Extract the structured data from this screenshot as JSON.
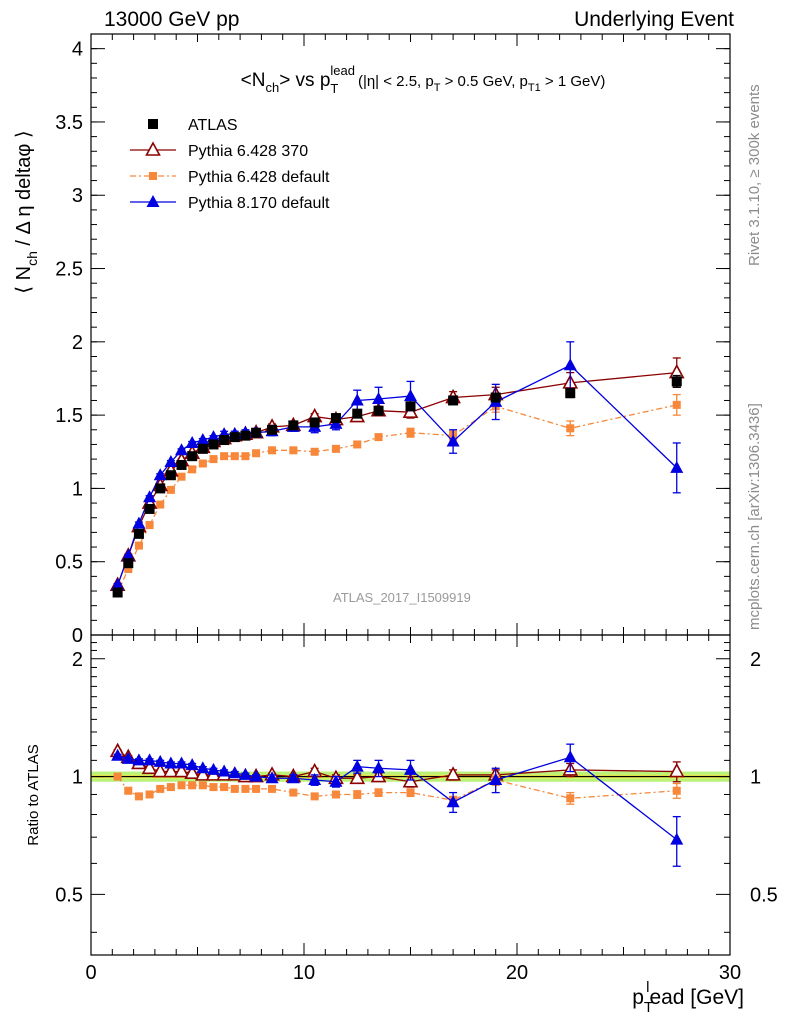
{
  "header": {
    "energy_label": "13000 GeV pp",
    "process_label": "Underlying Event"
  },
  "side_notes": {
    "rivet": "Rivet 3.1.10, ≥ 300k events",
    "source": "mcplots.cern.ch [arXiv:1306.3436]"
  },
  "analysis_tag": "ATLAS_2017_I1509919",
  "colors": {
    "atlas": "#000000",
    "pythia6_370": "#8b0000",
    "pythia6_default": "#f7873a",
    "pythia8_default": "#0000e0",
    "band_inner": "#ffff55",
    "band_outer": "#aaee55"
  },
  "chart_data": [
    {
      "type": "scatter",
      "panel": "main",
      "title": "<N_ch> vs p_T^lead (|η| < 2.5, p_T > 0.5 GeV, p_T1 > 1 GeV)",
      "title_parts": {
        "lhs": "<N",
        "lhs_sub": "ch",
        "mid": "> vs p",
        "mid_sub": "T",
        "mid_sup": "lead",
        "cuts_open": "(|η| < 2.5, p",
        "cuts_sub1": "T",
        "cuts_mid": " > 0.5 GeV, p",
        "cuts_sub2": "T1",
        "cuts_close": " > 1 GeV)"
      },
      "ylabel": "⟨ N_ch / Δη deltaφ ⟩",
      "ylabel_parts": {
        "open": "⟨ N",
        "sub": "ch",
        "rest": " / Δ η deltaφ ⟩"
      },
      "xlim": [
        0,
        30
      ],
      "ylim": [
        0,
        4.1
      ],
      "y_ticks": [
        0,
        0.5,
        1,
        1.5,
        2,
        2.5,
        3,
        3.5,
        4
      ],
      "y_tick_labels": [
        "0",
        "0.5",
        "1",
        "1.5",
        "2",
        "2.5",
        "3",
        "3.5",
        "4"
      ],
      "legend_position": "top-left",
      "series": [
        {
          "name": "ATLAS",
          "marker": "square",
          "x": [
            1.25,
            1.75,
            2.25,
            2.75,
            3.25,
            3.75,
            4.25,
            4.75,
            5.25,
            5.75,
            6.25,
            6.75,
            7.25,
            7.75,
            8.5,
            9.5,
            10.5,
            11.5,
            12.5,
            13.5,
            15,
            17,
            19,
            22.5,
            27.5
          ],
          "y": [
            0.29,
            0.49,
            0.69,
            0.86,
            1.0,
            1.09,
            1.16,
            1.22,
            1.27,
            1.3,
            1.33,
            1.35,
            1.36,
            1.38,
            1.4,
            1.43,
            1.45,
            1.48,
            1.51,
            1.53,
            1.56,
            1.6,
            1.62,
            1.65,
            1.73
          ],
          "yerr": [
            0.01,
            0.01,
            0.01,
            0.01,
            0.01,
            0.01,
            0.01,
            0.01,
            0.01,
            0.01,
            0.01,
            0.01,
            0.01,
            0.01,
            0.01,
            0.01,
            0.01,
            0.01,
            0.01,
            0.01,
            0.02,
            0.02,
            0.02,
            0.03,
            0.04
          ]
        },
        {
          "name": "Pythia 6.428 370",
          "marker": "open-triangle",
          "line": "solid",
          "x": [
            1.25,
            1.75,
            2.25,
            2.75,
            3.25,
            3.75,
            4.25,
            4.75,
            5.25,
            5.75,
            6.25,
            6.75,
            7.25,
            7.75,
            8.5,
            9.5,
            10.5,
            11.5,
            12.5,
            13.5,
            15,
            17,
            19,
            22.5,
            27.5
          ],
          "y": [
            0.34,
            0.54,
            0.74,
            0.9,
            1.02,
            1.12,
            1.19,
            1.24,
            1.28,
            1.32,
            1.34,
            1.36,
            1.37,
            1.38,
            1.42,
            1.43,
            1.49,
            1.47,
            1.49,
            1.53,
            1.52,
            1.62,
            1.64,
            1.72,
            1.79
          ],
          "yerr": [
            0.01,
            0.01,
            0.01,
            0.01,
            0.01,
            0.01,
            0.01,
            0.01,
            0.01,
            0.01,
            0.01,
            0.01,
            0.01,
            0.01,
            0.02,
            0.02,
            0.02,
            0.03,
            0.03,
            0.03,
            0.04,
            0.04,
            0.05,
            0.07,
            0.1
          ]
        },
        {
          "name": "Pythia 6.428 default",
          "marker": "small-square",
          "line": "dashdot",
          "x": [
            1.25,
            1.75,
            2.25,
            2.75,
            3.25,
            3.75,
            4.25,
            4.75,
            5.25,
            5.75,
            6.25,
            6.75,
            7.25,
            7.75,
            8.5,
            9.5,
            10.5,
            11.5,
            12.5,
            13.5,
            15,
            17,
            19,
            22.5,
            27.5
          ],
          "y": [
            0.29,
            0.45,
            0.61,
            0.75,
            0.89,
            0.99,
            1.08,
            1.13,
            1.17,
            1.2,
            1.22,
            1.22,
            1.22,
            1.24,
            1.26,
            1.26,
            1.25,
            1.27,
            1.3,
            1.35,
            1.38,
            1.36,
            1.56,
            1.41,
            1.57
          ],
          "yerr": [
            0.01,
            0.01,
            0.01,
            0.01,
            0.01,
            0.01,
            0.01,
            0.01,
            0.01,
            0.01,
            0.01,
            0.01,
            0.01,
            0.01,
            0.01,
            0.01,
            0.01,
            0.02,
            0.02,
            0.02,
            0.03,
            0.03,
            0.04,
            0.05,
            0.07
          ]
        },
        {
          "name": "Pythia 8.170 default",
          "marker": "filled-triangle",
          "line": "solid",
          "x": [
            1.25,
            1.75,
            2.25,
            2.75,
            3.25,
            3.75,
            4.25,
            4.75,
            5.25,
            5.75,
            6.25,
            6.75,
            7.25,
            7.75,
            8.5,
            9.5,
            10.5,
            11.5,
            12.5,
            13.5,
            15,
            17,
            19,
            22.5,
            27.5
          ],
          "y": [
            0.34,
            0.54,
            0.76,
            0.94,
            1.09,
            1.18,
            1.26,
            1.31,
            1.33,
            1.35,
            1.37,
            1.37,
            1.38,
            1.38,
            1.39,
            1.42,
            1.42,
            1.44,
            1.6,
            1.61,
            1.63,
            1.32,
            1.59,
            1.84,
            1.14
          ],
          "yerr": [
            0.01,
            0.01,
            0.01,
            0.01,
            0.01,
            0.01,
            0.01,
            0.01,
            0.01,
            0.01,
            0.02,
            0.02,
            0.02,
            0.02,
            0.03,
            0.03,
            0.04,
            0.04,
            0.07,
            0.08,
            0.1,
            0.08,
            0.12,
            0.16,
            0.17
          ]
        }
      ]
    },
    {
      "type": "scatter",
      "panel": "ratio",
      "ylabel": "Ratio to ATLAS",
      "xlabel": "p_T^lead [GeV]",
      "xlabel_parts": {
        "main": "p",
        "sub": "T",
        "sup": "l",
        "rest": "ead [GeV]"
      },
      "xlim": [
        0,
        30
      ],
      "ylim": [
        0.35,
        2.3
      ],
      "x_ticks": [
        0,
        10,
        20,
        30
      ],
      "x_tick_labels": [
        "0",
        "10",
        "20",
        "30"
      ],
      "y_ticks": [
        0.5,
        1,
        2
      ],
      "y_tick_labels": [
        "0.5",
        "1",
        "2"
      ],
      "reference_line": 1,
      "uncertainty_band": {
        "inner": 0.01,
        "outer": 0.03
      },
      "x": [
        1.25,
        1.75,
        2.25,
        2.75,
        3.25,
        3.75,
        4.25,
        4.75,
        5.25,
        5.75,
        6.25,
        6.75,
        7.25,
        7.75,
        8.5,
        9.5,
        10.5,
        11.5,
        12.5,
        13.5,
        15,
        17,
        19,
        22.5,
        27.5
      ],
      "series": [
        {
          "name": "Pythia 6.428 370",
          "values": [
            1.16,
            1.12,
            1.08,
            1.05,
            1.03,
            1.03,
            1.03,
            1.02,
            1.01,
            1.01,
            1.01,
            1.01,
            1.0,
            1.0,
            1.01,
            1.0,
            1.03,
            0.99,
            0.99,
            1.0,
            0.97,
            1.01,
            1.01,
            1.04,
            1.03
          ],
          "yerr": [
            0.01,
            0.01,
            0.01,
            0.01,
            0.01,
            0.01,
            0.01,
            0.01,
            0.01,
            0.01,
            0.01,
            0.01,
            0.01,
            0.01,
            0.01,
            0.01,
            0.02,
            0.02,
            0.02,
            0.02,
            0.03,
            0.03,
            0.03,
            0.04,
            0.06
          ]
        },
        {
          "name": "Pythia 6.428 default",
          "values": [
            1.0,
            0.92,
            0.89,
            0.9,
            0.93,
            0.94,
            0.95,
            0.95,
            0.95,
            0.94,
            0.94,
            0.93,
            0.93,
            0.93,
            0.93,
            0.91,
            0.89,
            0.9,
            0.9,
            0.91,
            0.91,
            0.87,
            0.98,
            0.88,
            0.92
          ],
          "yerr": [
            0.01,
            0.01,
            0.01,
            0.01,
            0.01,
            0.01,
            0.01,
            0.01,
            0.01,
            0.01,
            0.01,
            0.01,
            0.01,
            0.01,
            0.01,
            0.01,
            0.01,
            0.01,
            0.02,
            0.02,
            0.02,
            0.02,
            0.03,
            0.03,
            0.04
          ]
        },
        {
          "name": "Pythia 8.170 default",
          "values": [
            1.13,
            1.11,
            1.1,
            1.1,
            1.09,
            1.08,
            1.08,
            1.07,
            1.05,
            1.04,
            1.03,
            1.02,
            1.01,
            1.0,
            0.99,
            0.99,
            0.98,
            0.97,
            1.06,
            1.05,
            1.04,
            0.86,
            0.98,
            1.12,
            0.69
          ],
          "yerr": [
            0.01,
            0.01,
            0.01,
            0.01,
            0.01,
            0.01,
            0.01,
            0.01,
            0.01,
            0.01,
            0.01,
            0.01,
            0.01,
            0.01,
            0.02,
            0.02,
            0.03,
            0.03,
            0.04,
            0.05,
            0.06,
            0.05,
            0.07,
            0.09,
            0.1
          ]
        }
      ]
    }
  ]
}
